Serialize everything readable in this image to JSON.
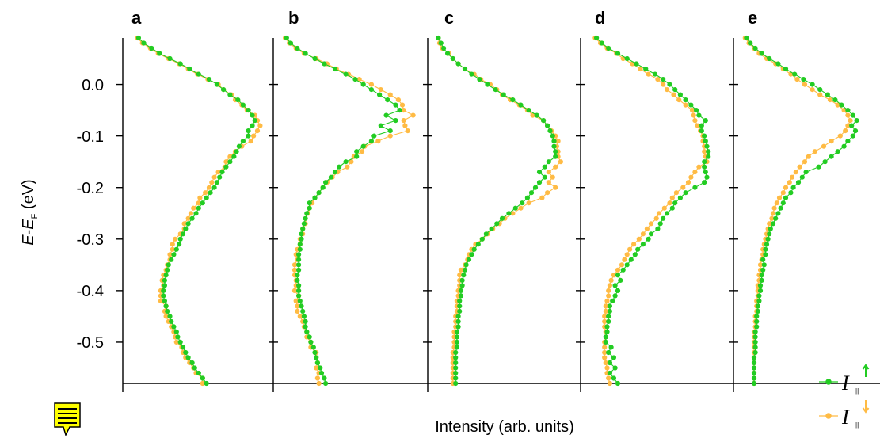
{
  "chart_data": {
    "type": "line",
    "panels": [
      "a",
      "b",
      "c",
      "d",
      "e"
    ],
    "ylabel_parts": [
      "E",
      "-",
      "E",
      "F",
      " (eV)"
    ],
    "xlabel": "Intensity (arb. units)",
    "ylim": [
      -0.58,
      0.09
    ],
    "y_ticks": [
      0.0,
      -0.1,
      -0.2,
      -0.3,
      -0.4,
      -0.5
    ],
    "y_tick_labels": [
      "0.0",
      "-0.1",
      "-0.2",
      "-0.3",
      "-0.4",
      "-0.5"
    ],
    "series_names": [
      "I∥↑",
      "I∥↓"
    ],
    "legend": {
      "placement": "bottom-right",
      "labels": [
        "I",
        "I"
      ],
      "subscript": "||"
    },
    "colors": {
      "up": "#22cc22",
      "down": "#ffbb44",
      "axis": "#000000"
    },
    "energies": [
      0.09,
      0.08,
      0.07,
      0.06,
      0.05,
      0.04,
      0.03,
      0.02,
      0.01,
      0.0,
      -0.01,
      -0.02,
      -0.03,
      -0.04,
      -0.05,
      -0.06,
      -0.07,
      -0.08,
      -0.09,
      -0.1,
      -0.11,
      -0.12,
      -0.13,
      -0.14,
      -0.15,
      -0.16,
      -0.17,
      -0.18,
      -0.19,
      -0.2,
      -0.21,
      -0.22,
      -0.23,
      -0.24,
      -0.25,
      -0.26,
      -0.27,
      -0.28,
      -0.29,
      -0.3,
      -0.31,
      -0.32,
      -0.33,
      -0.34,
      -0.35,
      -0.36,
      -0.37,
      -0.38,
      -0.39,
      -0.4,
      -0.41,
      -0.42,
      -0.43,
      -0.44,
      -0.45,
      -0.46,
      -0.47,
      -0.48,
      -0.49,
      -0.5,
      -0.51,
      -0.52,
      -0.53,
      -0.54,
      -0.55,
      -0.56,
      -0.57,
      -0.58
    ],
    "intensity_range": [
      0,
      1
    ],
    "series_data": {
      "a": {
        "up": [
          0.06,
          0.1,
          0.16,
          0.22,
          0.3,
          0.38,
          0.45,
          0.52,
          0.6,
          0.66,
          0.71,
          0.76,
          0.82,
          0.86,
          0.9,
          0.93,
          0.95,
          0.93,
          0.9,
          0.9,
          0.86,
          0.83,
          0.81,
          0.79,
          0.76,
          0.73,
          0.7,
          0.68,
          0.66,
          0.64,
          0.61,
          0.58,
          0.55,
          0.52,
          0.5,
          0.47,
          0.44,
          0.42,
          0.4,
          0.38,
          0.37,
          0.35,
          0.33,
          0.31,
          0.29,
          0.28,
          0.27,
          0.26,
          0.26,
          0.25,
          0.25,
          0.26,
          0.27,
          0.28,
          0.3,
          0.31,
          0.33,
          0.35,
          0.36,
          0.38,
          0.4,
          0.42,
          0.44,
          0.47,
          0.49,
          0.52,
          0.55,
          0.58
        ],
        "down": [
          0.05,
          0.09,
          0.15,
          0.21,
          0.29,
          0.37,
          0.44,
          0.51,
          0.59,
          0.67,
          0.71,
          0.77,
          0.8,
          0.85,
          0.89,
          0.95,
          0.97,
          0.99,
          0.97,
          0.94,
          0.92,
          0.85,
          0.8,
          0.76,
          0.73,
          0.72,
          0.67,
          0.64,
          0.62,
          0.6,
          0.57,
          0.53,
          0.52,
          0.48,
          0.46,
          0.44,
          0.41,
          0.41,
          0.38,
          0.34,
          0.32,
          0.32,
          0.3,
          0.3,
          0.28,
          0.27,
          0.25,
          0.24,
          0.25,
          0.23,
          0.23,
          0.23,
          0.27,
          0.26,
          0.27,
          0.29,
          0.31,
          0.33,
          0.34,
          0.35,
          0.39,
          0.4,
          0.42,
          0.45,
          0.48,
          0.5,
          0.55,
          0.55
        ]
      },
      "b": {
        "up": [
          0.04,
          0.07,
          0.12,
          0.18,
          0.25,
          0.32,
          0.4,
          0.48,
          0.55,
          0.61,
          0.67,
          0.73,
          0.79,
          0.85,
          0.88,
          0.78,
          0.85,
          0.74,
          0.81,
          0.69,
          0.67,
          0.61,
          0.56,
          0.56,
          0.48,
          0.43,
          0.4,
          0.37,
          0.33,
          0.31,
          0.28,
          0.25,
          0.21,
          0.21,
          0.19,
          0.18,
          0.17,
          0.16,
          0.15,
          0.15,
          0.14,
          0.14,
          0.13,
          0.13,
          0.13,
          0.13,
          0.12,
          0.12,
          0.13,
          0.13,
          0.13,
          0.14,
          0.15,
          0.16,
          0.17,
          0.18,
          0.18,
          0.19,
          0.21,
          0.22,
          0.24,
          0.25,
          0.26,
          0.27,
          0.29,
          0.3,
          0.32,
          0.33
        ],
        "down": [
          0.03,
          0.06,
          0.11,
          0.17,
          0.26,
          0.34,
          0.41,
          0.5,
          0.58,
          0.67,
          0.74,
          0.81,
          0.87,
          0.9,
          0.91,
          0.98,
          0.91,
          0.92,
          0.94,
          0.81,
          0.72,
          0.62,
          0.6,
          0.54,
          0.52,
          0.49,
          0.42,
          0.38,
          0.34,
          0.31,
          0.28,
          0.25,
          0.23,
          0.21,
          0.2,
          0.18,
          0.18,
          0.16,
          0.16,
          0.14,
          0.14,
          0.12,
          0.11,
          0.12,
          0.1,
          0.1,
          0.1,
          0.11,
          0.11,
          0.1,
          0.13,
          0.11,
          0.12,
          0.12,
          0.14,
          0.16,
          0.17,
          0.19,
          0.19,
          0.22,
          0.22,
          0.26,
          0.26,
          0.27,
          0.26,
          0.28,
          0.27,
          0.28
        ]
      },
      "c": {
        "up": [
          0.02,
          0.04,
          0.06,
          0.09,
          0.13,
          0.17,
          0.22,
          0.27,
          0.33,
          0.39,
          0.45,
          0.51,
          0.58,
          0.64,
          0.7,
          0.76,
          0.81,
          0.84,
          0.86,
          0.88,
          0.89,
          0.89,
          0.9,
          0.9,
          0.85,
          0.82,
          0.78,
          0.82,
          0.78,
          0.75,
          0.72,
          0.69,
          0.65,
          0.6,
          0.55,
          0.5,
          0.46,
          0.42,
          0.38,
          0.35,
          0.32,
          0.29,
          0.27,
          0.25,
          0.23,
          0.22,
          0.21,
          0.2,
          0.2,
          0.19,
          0.19,
          0.18,
          0.18,
          0.18,
          0.17,
          0.17,
          0.17,
          0.16,
          0.16,
          0.16,
          0.16,
          0.15,
          0.15,
          0.15,
          0.15,
          0.15,
          0.15,
          0.15
        ],
        "down": [
          0.02,
          0.03,
          0.05,
          0.1,
          0.13,
          0.17,
          0.22,
          0.29,
          0.34,
          0.41,
          0.46,
          0.5,
          0.56,
          0.63,
          0.69,
          0.73,
          0.81,
          0.84,
          0.87,
          0.9,
          0.92,
          0.91,
          0.92,
          0.92,
          0.94,
          0.9,
          0.85,
          0.88,
          0.85,
          0.9,
          0.84,
          0.8,
          0.7,
          0.64,
          0.58,
          0.52,
          0.48,
          0.43,
          0.39,
          0.35,
          0.3,
          0.27,
          0.25,
          0.24,
          0.22,
          0.19,
          0.18,
          0.18,
          0.18,
          0.17,
          0.17,
          0.16,
          0.16,
          0.16,
          0.15,
          0.15,
          0.15,
          0.14,
          0.14,
          0.14,
          0.14,
          0.13,
          0.13,
          0.13,
          0.13,
          0.13,
          0.13,
          0.13
        ]
      },
      "d": {
        "up": [
          0.06,
          0.1,
          0.15,
          0.22,
          0.29,
          0.36,
          0.43,
          0.5,
          0.56,
          0.61,
          0.65,
          0.69,
          0.73,
          0.77,
          0.81,
          0.83,
          0.88,
          0.85,
          0.85,
          0.87,
          0.88,
          0.89,
          0.9,
          0.9,
          0.87,
          0.87,
          0.88,
          0.89,
          0.87,
          0.8,
          0.73,
          0.69,
          0.65,
          0.63,
          0.59,
          0.56,
          0.54,
          0.52,
          0.47,
          0.45,
          0.41,
          0.37,
          0.35,
          0.32,
          0.29,
          0.26,
          0.22,
          0.24,
          0.2,
          0.22,
          0.2,
          0.18,
          0.16,
          0.16,
          0.15,
          0.15,
          0.14,
          0.14,
          0.13,
          0.13,
          0.17,
          0.15,
          0.19,
          0.16,
          0.2,
          0.16,
          0.19,
          0.22
        ],
        "down": [
          0.05,
          0.09,
          0.14,
          0.21,
          0.26,
          0.33,
          0.39,
          0.45,
          0.52,
          0.56,
          0.59,
          0.64,
          0.68,
          0.73,
          0.78,
          0.79,
          0.8,
          0.82,
          0.84,
          0.86,
          0.86,
          0.87,
          0.87,
          0.88,
          0.89,
          0.83,
          0.8,
          0.77,
          0.75,
          0.71,
          0.66,
          0.63,
          0.61,
          0.57,
          0.53,
          0.51,
          0.47,
          0.44,
          0.41,
          0.38,
          0.34,
          0.31,
          0.29,
          0.27,
          0.25,
          0.22,
          0.19,
          0.17,
          0.16,
          0.15,
          0.15,
          0.14,
          0.13,
          0.13,
          0.12,
          0.12,
          0.12,
          0.13,
          0.13,
          0.12,
          0.12,
          0.12,
          0.12,
          0.13,
          0.14,
          0.14,
          0.15,
          0.16
        ]
      },
      "e": {
        "up": [
          0.04,
          0.07,
          0.11,
          0.16,
          0.22,
          0.29,
          0.35,
          0.42,
          0.49,
          0.56,
          0.62,
          0.68,
          0.74,
          0.79,
          0.84,
          0.88,
          0.91,
          0.87,
          0.9,
          0.88,
          0.84,
          0.81,
          0.76,
          0.71,
          0.66,
          0.61,
          0.51,
          0.48,
          0.45,
          0.41,
          0.39,
          0.35,
          0.33,
          0.31,
          0.29,
          0.27,
          0.25,
          0.23,
          0.22,
          0.21,
          0.2,
          0.19,
          0.19,
          0.17,
          0.18,
          0.17,
          0.16,
          0.16,
          0.15,
          0.15,
          0.14,
          0.14,
          0.13,
          0.13,
          0.12,
          0.12,
          0.12,
          0.11,
          0.11,
          0.11,
          0.11,
          0.11,
          0.1,
          0.1,
          0.1,
          0.1,
          0.1,
          0.1
        ],
        "down": [
          0.03,
          0.06,
          0.1,
          0.14,
          0.2,
          0.27,
          0.33,
          0.39,
          0.44,
          0.5,
          0.56,
          0.62,
          0.7,
          0.76,
          0.81,
          0.84,
          0.86,
          0.84,
          0.82,
          0.78,
          0.71,
          0.65,
          0.58,
          0.53,
          0.5,
          0.46,
          0.43,
          0.4,
          0.38,
          0.35,
          0.33,
          0.3,
          0.28,
          0.26,
          0.25,
          0.24,
          0.22,
          0.21,
          0.2,
          0.19,
          0.18,
          0.17,
          0.17,
          0.16,
          0.15,
          0.15,
          0.14,
          0.14,
          0.13,
          0.13,
          0.13,
          0.12,
          0.12,
          0.12,
          0.11,
          0.11,
          0.11,
          0.1,
          0.1,
          0.1,
          0.1,
          0.1,
          0.1,
          0.1,
          0.1,
          0.1,
          0.1,
          0.1
        ]
      }
    }
  }
}
